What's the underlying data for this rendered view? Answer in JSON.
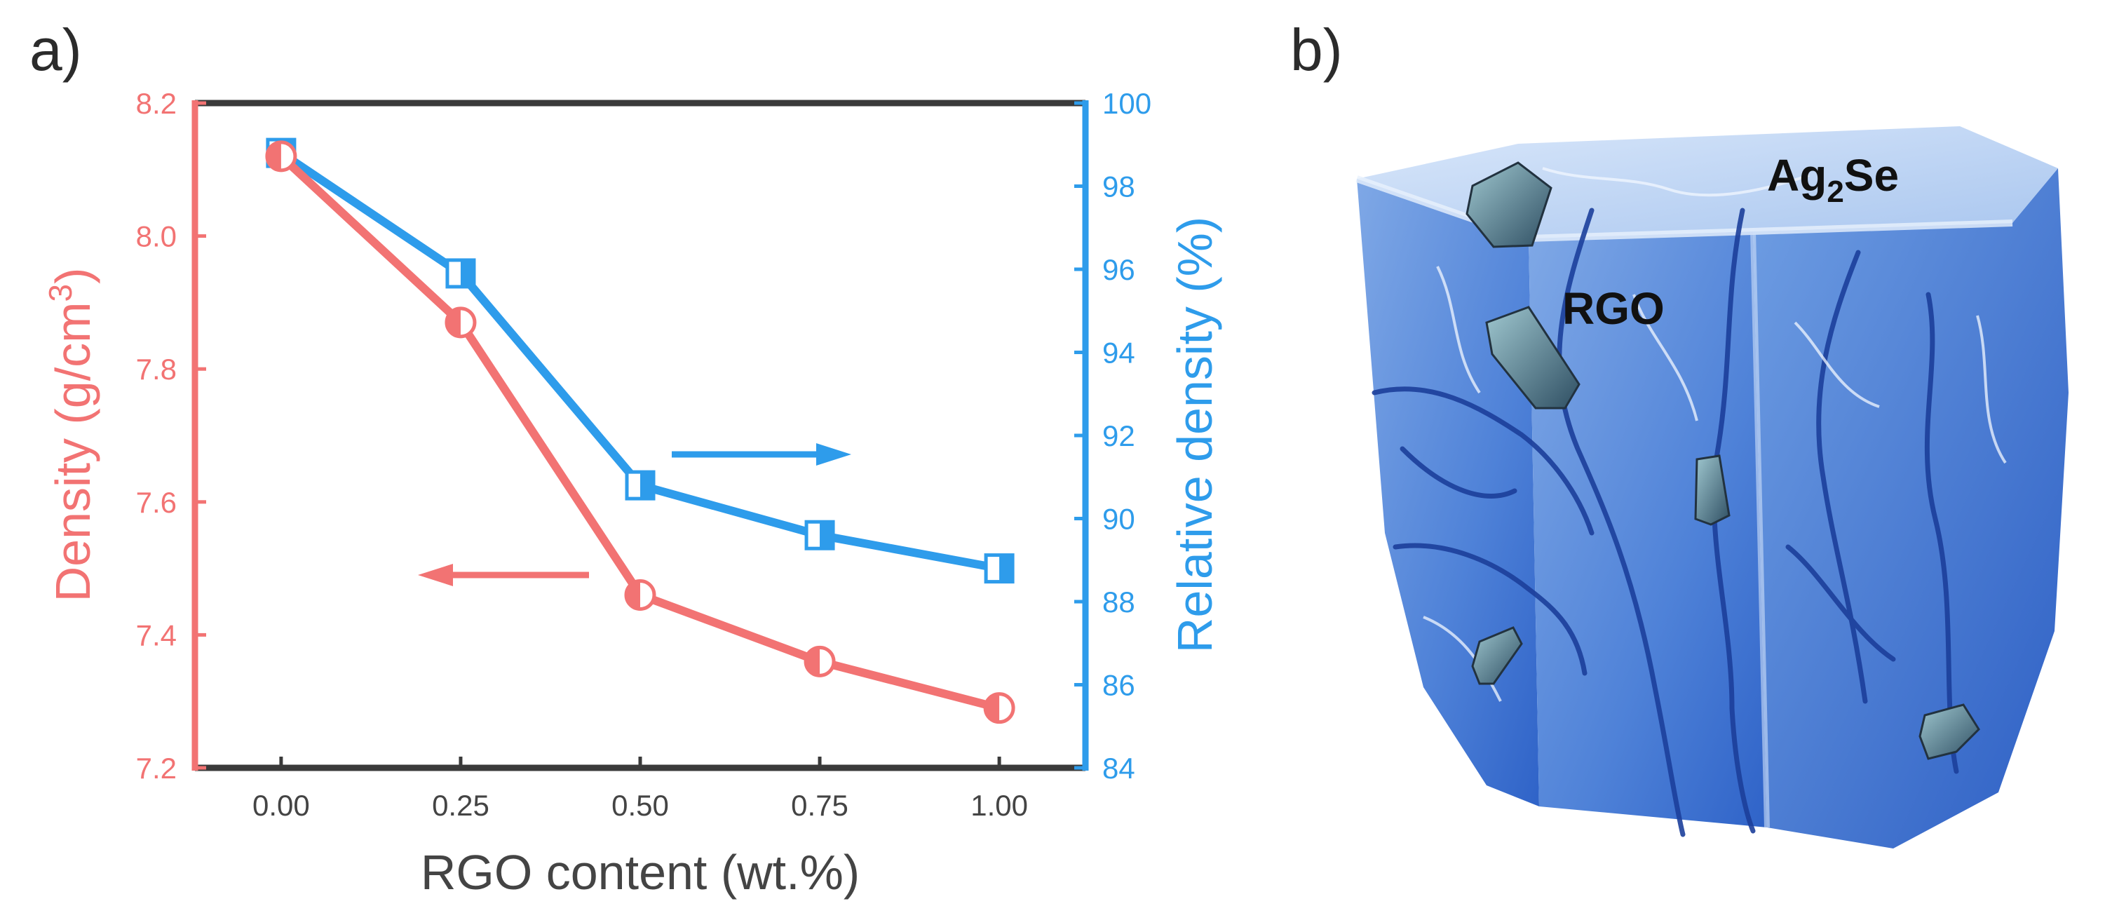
{
  "panels": {
    "a": {
      "label": "a)"
    },
    "b": {
      "label": "b)"
    }
  },
  "colors": {
    "density": "#f27373",
    "relative": "#2e9ceb",
    "frame": "#3a3a3a",
    "text": "#444444"
  },
  "chart_data": {
    "type": "line",
    "title": "",
    "xlabel": "RGO content (wt.%)",
    "ylabel": "Density (g/cm",
    "ylabel_sup": "3",
    "ylabel_close": ")",
    "y2label": "Relative density (%)",
    "x": [
      0.0,
      0.25,
      0.5,
      0.75,
      1.0
    ],
    "x_ticks": [
      "0.00",
      "0.25",
      "0.50",
      "0.75",
      "1.00"
    ],
    "xlim": [
      -0.12,
      1.12
    ],
    "ylim": [
      7.2,
      8.2
    ],
    "y_ticks": [
      "7.2",
      "7.4",
      "7.6",
      "7.8",
      "8.0",
      "8.2"
    ],
    "y2lim": [
      84,
      100
    ],
    "y2_ticks": [
      "84",
      "86",
      "88",
      "90",
      "92",
      "94",
      "96",
      "98",
      "100"
    ],
    "series": [
      {
        "name": "Density",
        "axis": "left",
        "marker": "half-circle",
        "values": [
          8.12,
          7.87,
          7.46,
          7.36,
          7.29
        ]
      },
      {
        "name": "Relative density",
        "axis": "right",
        "marker": "half-square",
        "values": [
          98.8,
          95.9,
          90.8,
          89.6,
          88.8
        ]
      }
    ],
    "annotations": [
      {
        "type": "arrow",
        "series": "Relative density",
        "direction": "right"
      },
      {
        "type": "arrow",
        "series": "Density",
        "direction": "left"
      }
    ]
  },
  "cube": {
    "host_label": "Ag",
    "host_sub": "2",
    "host_suffix": "Se",
    "filler_label": "RGO"
  }
}
